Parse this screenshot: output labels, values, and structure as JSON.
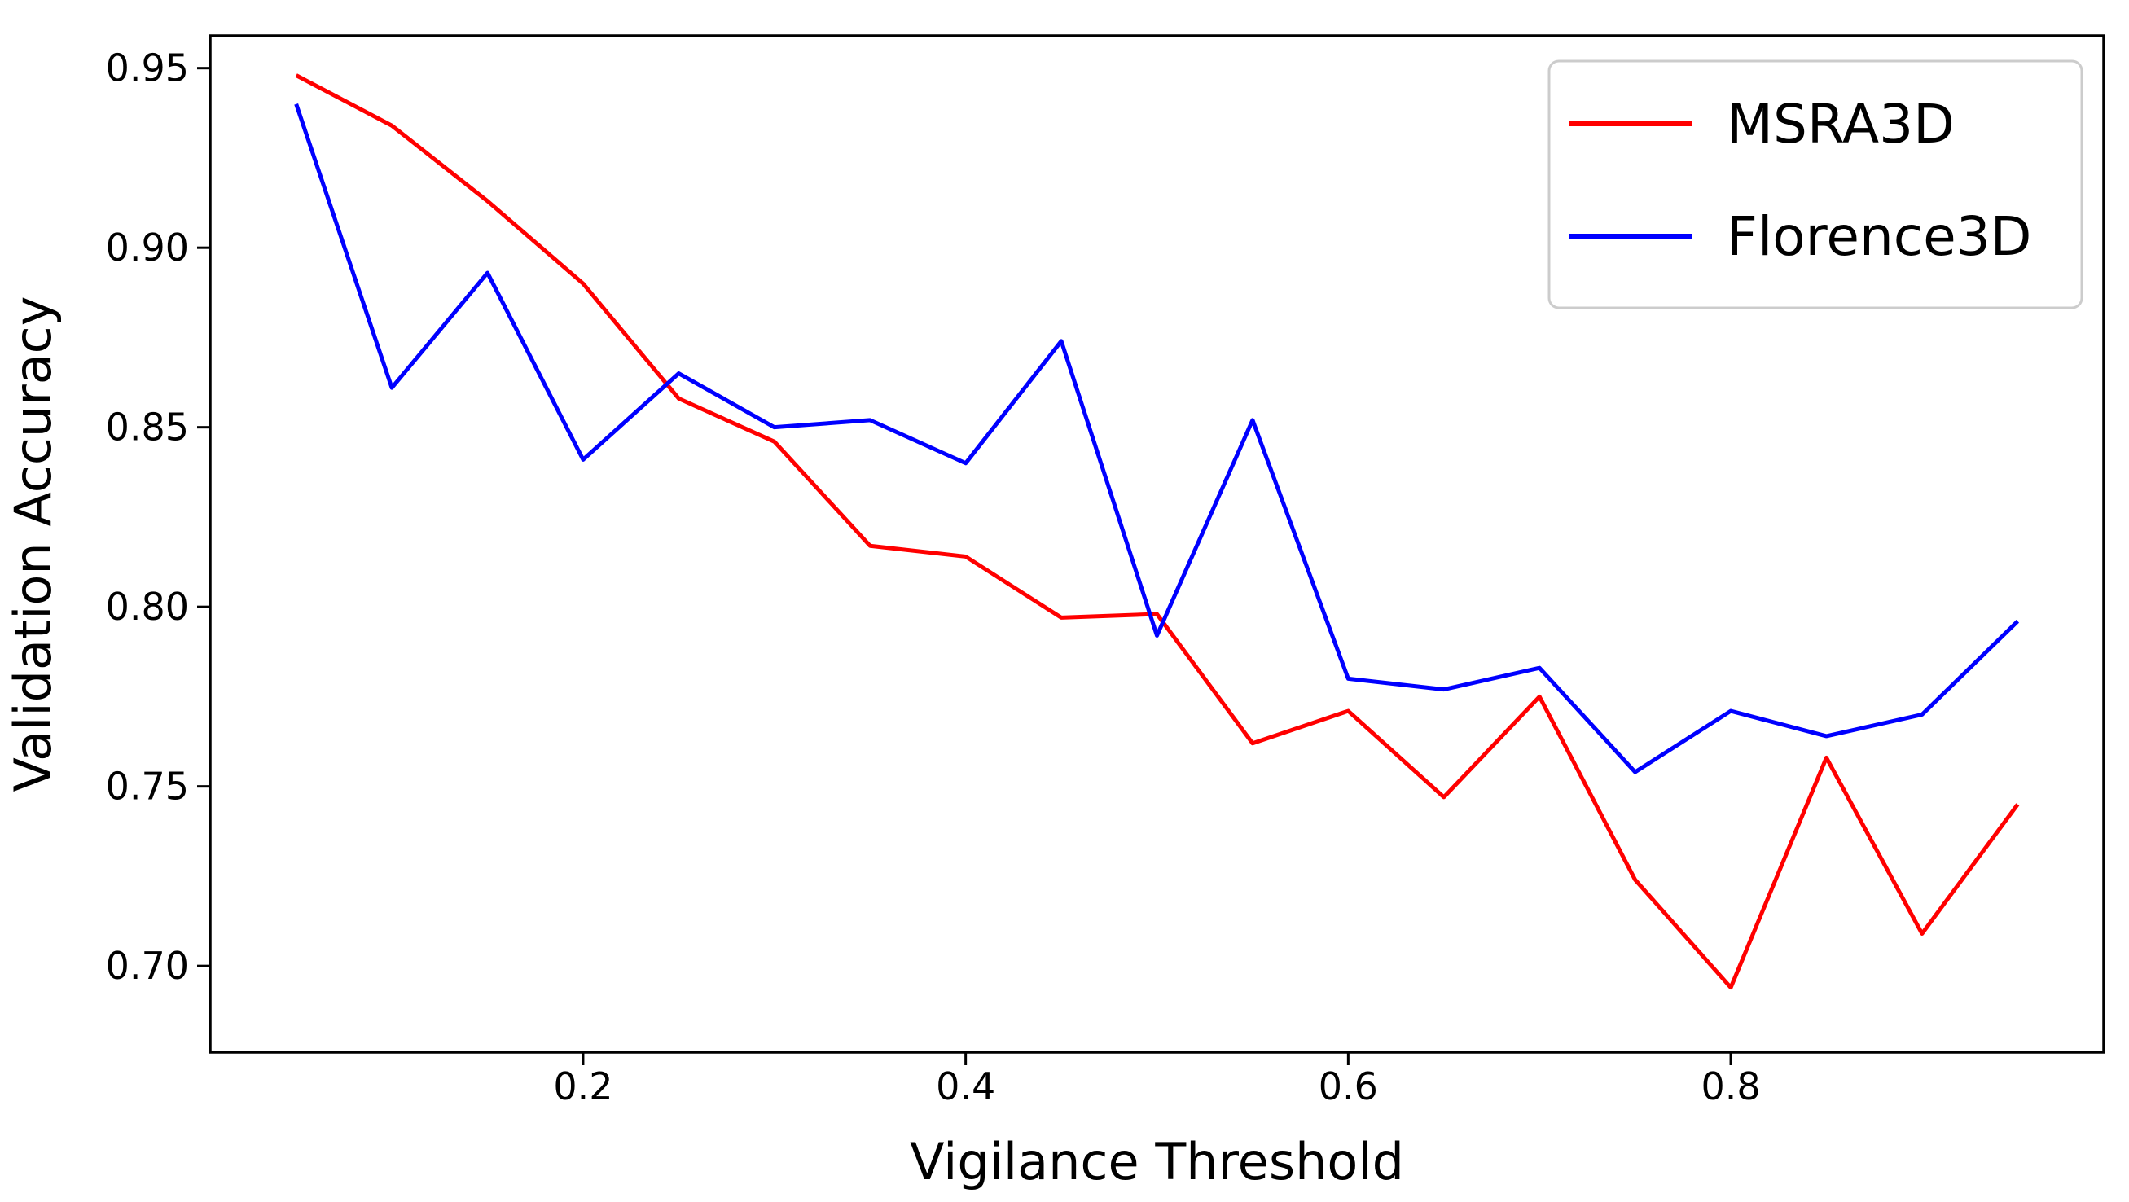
{
  "chart_data": {
    "type": "line",
    "title": "",
    "xlabel": "Vigilance Threshold",
    "ylabel": "Validation Accuracy",
    "x": [
      0.05,
      0.1,
      0.15,
      0.2,
      0.25,
      0.3,
      0.35,
      0.4,
      0.45,
      0.5,
      0.55,
      0.6,
      0.65,
      0.7,
      0.75,
      0.8,
      0.85,
      0.9,
      0.95
    ],
    "series": [
      {
        "name": "MSRA3D",
        "color": "#ff0000",
        "values": [
          0.948,
          0.934,
          0.913,
          0.89,
          0.858,
          0.846,
          0.817,
          0.814,
          0.797,
          0.798,
          0.762,
          0.771,
          0.747,
          0.775,
          0.724,
          0.694,
          0.758,
          0.709,
          0.745
        ]
      },
      {
        "name": "Florence3D",
        "color": "#0000ff",
        "values": [
          0.94,
          0.861,
          0.893,
          0.841,
          0.865,
          0.85,
          0.852,
          0.84,
          0.874,
          0.792,
          0.852,
          0.78,
          0.777,
          0.783,
          0.754,
          0.771,
          0.764,
          0.77,
          0.796
        ]
      }
    ],
    "xlim": [
      0.005,
      0.995
    ],
    "ylim": [
      0.676,
      0.959
    ],
    "x_ticks": [
      0.2,
      0.4,
      0.6,
      0.8
    ],
    "x_tick_labels": [
      "0.2",
      "0.4",
      "0.6",
      "0.8"
    ],
    "y_ticks": [
      0.7,
      0.75,
      0.8,
      0.85,
      0.9,
      0.95
    ],
    "y_tick_labels": [
      "0.70",
      "0.75",
      "0.80",
      "0.85",
      "0.90",
      "0.95"
    ],
    "grid": false,
    "legend_position": "upper right",
    "background_color": "#ffffff",
    "axis_color": "#000000"
  }
}
